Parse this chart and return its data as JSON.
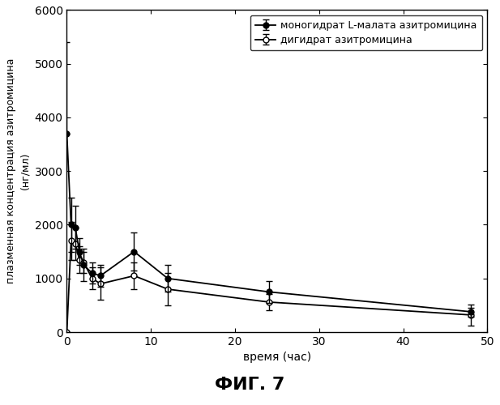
{
  "title": "ФИГ. 7",
  "xlabel": "время (час)",
  "ylabel_line1": "плазменная концентрация азитромицина",
  "ylabel_line2": "(нг/мл)",
  "xlim": [
    0,
    50
  ],
  "ylim": [
    0,
    6000
  ],
  "yticks": [
    0,
    1000,
    2000,
    3000,
    4000,
    5000,
    6000
  ],
  "xticks": [
    0,
    10,
    20,
    30,
    40,
    50
  ],
  "series1_label": "моногидрат L-малата азитромицина",
  "series2_label": "дигидрат азитромицина",
  "series1_x": [
    0,
    0.5,
    1,
    1.5,
    2,
    3,
    4,
    8,
    12,
    24,
    48
  ],
  "series1_y": [
    3700,
    2000,
    1950,
    1500,
    1250,
    1100,
    1050,
    1500,
    1000,
    750,
    380
  ],
  "series1_yerr_low": [
    0,
    500,
    400,
    250,
    300,
    200,
    200,
    350,
    250,
    200,
    100
  ],
  "series1_yerr_high": [
    1700,
    500,
    400,
    250,
    300,
    200,
    200,
    350,
    250,
    200,
    80
  ],
  "series2_x": [
    0,
    0.5,
    1,
    1.5,
    2,
    3,
    4,
    8,
    12,
    24,
    48
  ],
  "series2_y": [
    0,
    1700,
    1650,
    1350,
    1300,
    1000,
    900,
    1050,
    800,
    560,
    320
  ],
  "series2_yerr_low": [
    0,
    350,
    300,
    250,
    200,
    200,
    300,
    250,
    300,
    150,
    200
  ],
  "series2_yerr_high": [
    0,
    350,
    300,
    250,
    200,
    200,
    300,
    250,
    300,
    150,
    200
  ],
  "line_color": "#000000",
  "bg_color": "#ffffff",
  "fontsize": 10,
  "title_fontsize": 16,
  "legend_fontsize": 9,
  "tick_fontsize": 10
}
